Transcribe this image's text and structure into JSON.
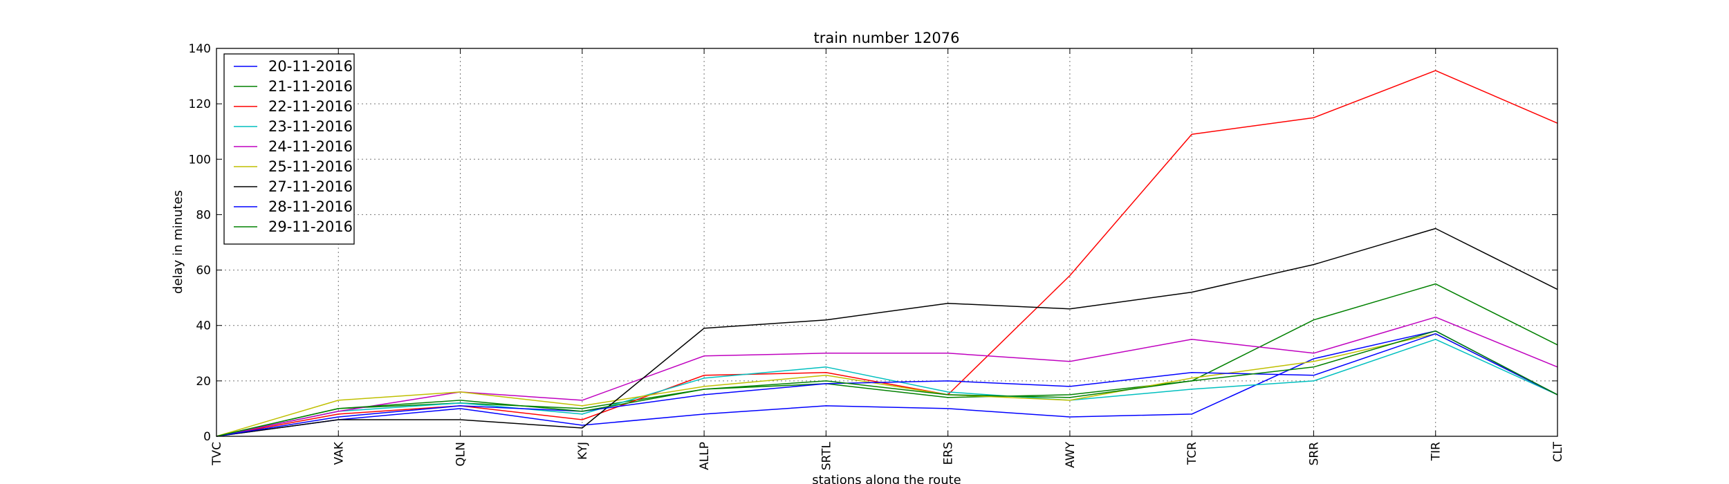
{
  "chart_data": {
    "type": "line",
    "title": "train number 12076",
    "xlabel": "stations along the route",
    "ylabel": "delay in minutes",
    "categories": [
      "TVC",
      "VAK",
      "QLN",
      "KYJ",
      "ALLP",
      "SRTL",
      "ERS",
      "AWY",
      "TCR",
      "SRR",
      "TIR",
      "CLT"
    ],
    "ylim": [
      0,
      140
    ],
    "yticks": [
      0,
      20,
      40,
      60,
      80,
      100,
      120,
      140
    ],
    "grid": true,
    "legend_position": "top-left",
    "series": [
      {
        "name": "20-11-2016",
        "color": "#0000ff",
        "values": [
          0,
          6,
          10,
          4,
          8,
          11,
          10,
          7,
          8,
          28,
          38,
          15
        ]
      },
      {
        "name": "21-11-2016",
        "color": "#008000",
        "values": [
          0,
          10,
          12,
          10,
          17,
          19,
          14,
          15,
          20,
          42,
          55,
          33
        ]
      },
      {
        "name": "22-11-2016",
        "color": "#ff0000",
        "values": [
          0,
          8,
          11,
          6,
          22,
          23,
          15,
          58,
          109,
          115,
          132,
          113
        ]
      },
      {
        "name": "23-11-2016",
        "color": "#00bfbf",
        "values": [
          0,
          9,
          12,
          8,
          21,
          25,
          16,
          13,
          17,
          20,
          35,
          15
        ]
      },
      {
        "name": "24-11-2016",
        "color": "#bf00bf",
        "values": [
          0,
          9,
          16,
          13,
          29,
          30,
          30,
          27,
          35,
          30,
          43,
          25
        ]
      },
      {
        "name": "25-11-2016",
        "color": "#bfbf00",
        "values": [
          0,
          13,
          16,
          11,
          18,
          22,
          15,
          13,
          21,
          27,
          37,
          15
        ]
      },
      {
        "name": "27-11-2016",
        "color": "#000000",
        "values": [
          0,
          6,
          6,
          3,
          39,
          42,
          48,
          46,
          52,
          62,
          75,
          53
        ]
      },
      {
        "name": "28-11-2016",
        "color": "#0000ff",
        "values": [
          0,
          7,
          11,
          9,
          15,
          19,
          20,
          18,
          23,
          22,
          37,
          15
        ]
      },
      {
        "name": "29-11-2016",
        "color": "#008000",
        "values": [
          0,
          10,
          13,
          9,
          17,
          20,
          15,
          14,
          20,
          25,
          38,
          15
        ]
      }
    ]
  }
}
